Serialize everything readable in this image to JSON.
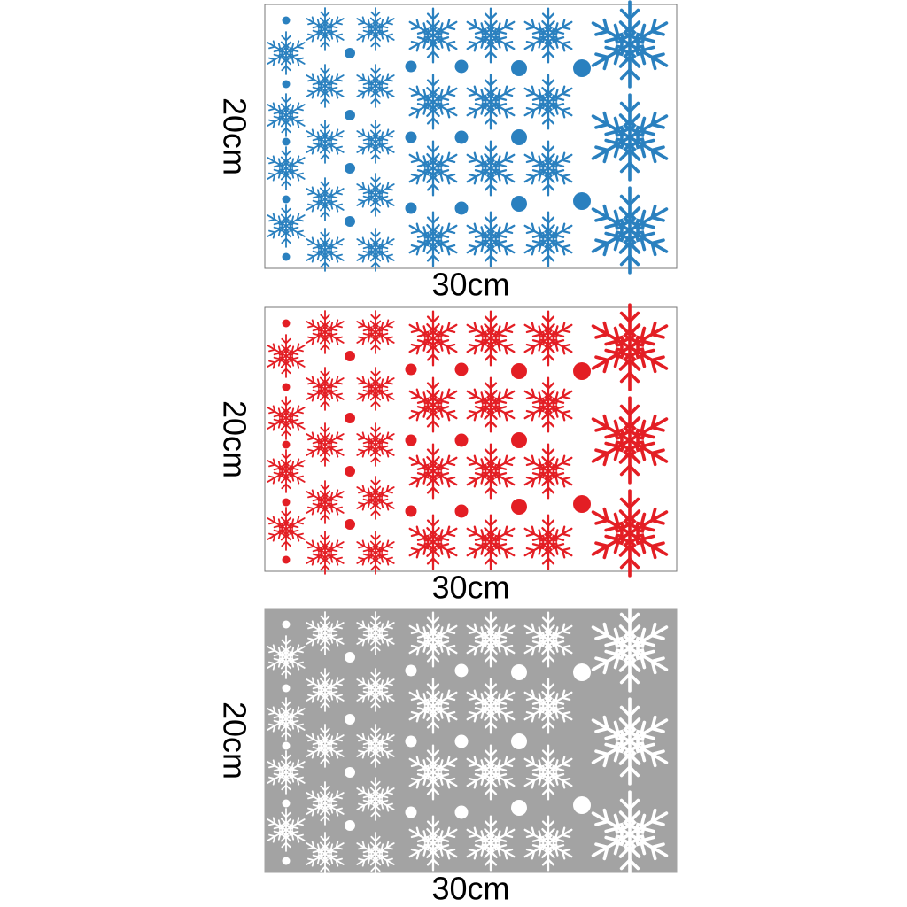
{
  "panels": [
    {
      "height_label": "20cm",
      "width_label": "30cm"
    },
    {
      "height_label": "20cm",
      "width_label": "30cm"
    },
    {
      "height_label": "20cm",
      "width_label": "30cm"
    }
  ]
}
